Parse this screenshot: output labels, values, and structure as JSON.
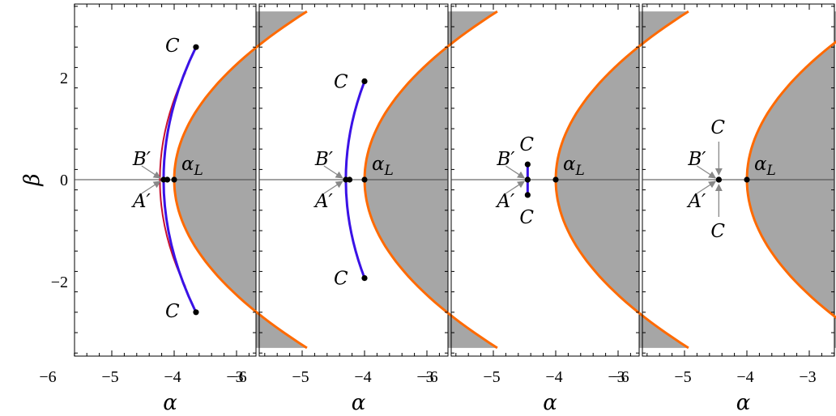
{
  "chart_data": {
    "type": "scatter",
    "layout": "four side-by-side panels sharing the beta axis",
    "xlabel": "α",
    "ylabel": "β",
    "xlim": [
      -6,
      -2.4
    ],
    "ylim": [
      -3.5,
      3.5
    ],
    "x_ticks": [
      -6,
      -5,
      -4,
      -3
    ],
    "x_tick_labels": [
      "−6",
      "−5",
      "−4",
      "−3"
    ],
    "y_ticks": [
      -2,
      0,
      2
    ],
    "y_tick_labels": [
      "−2",
      "0",
      "2"
    ],
    "grid": false,
    "colors": {
      "boundary": "#ff6a00",
      "region": "#a6a6a6",
      "curve": "#3a12e6",
      "inner_curve": "#c8102e",
      "points": "#000000",
      "arrows": "#888888",
      "zero_line": "#444444"
    },
    "boundary_curve": {
      "vertex_alpha": -4.0,
      "vertex_beta": 0,
      "curvature": 0.125,
      "beta_range": [
        -3.3,
        3.3
      ],
      "region": "inside (right side) shaded gray"
    },
    "panels": [
      {
        "alpha_L": -4.0,
        "A_prime": [
          -4.17,
          0
        ],
        "B_prime": [
          -4.17,
          0
        ],
        "C_top": [
          -3.65,
          2.6
        ],
        "C_bottom": [
          -3.65,
          -2.6
        ],
        "labels": {
          "C": "C",
          "B": "B′",
          "A": "A′",
          "L": "αL"
        }
      },
      {
        "alpha_L": -4.0,
        "A_prime": [
          -4.3,
          0
        ],
        "B_prime": [
          -4.3,
          0
        ],
        "C_top": [
          -4.0,
          1.93
        ],
        "C_bottom": [
          -4.0,
          -1.93
        ],
        "labels": {
          "C": "C",
          "B": "B′",
          "A": "A′",
          "L": "αL"
        }
      },
      {
        "alpha_L": -4.0,
        "A_prime": [
          -4.45,
          0
        ],
        "B_prime": [
          -4.45,
          0
        ],
        "C_top": [
          -4.45,
          0.3
        ],
        "C_bottom": [
          -4.45,
          -0.3
        ],
        "labels": {
          "C": "C",
          "B": "B′",
          "A": "A′",
          "L": "αL"
        }
      },
      {
        "alpha_L": -4.0,
        "A_prime": [
          -4.45,
          0
        ],
        "B_prime": [
          -4.45,
          0
        ],
        "C_top": [
          -4.45,
          0
        ],
        "C_bottom": [
          -4.45,
          0
        ],
        "labels": {
          "C": "C",
          "B": "B′",
          "A": "A′",
          "L": "αL"
        }
      }
    ]
  }
}
